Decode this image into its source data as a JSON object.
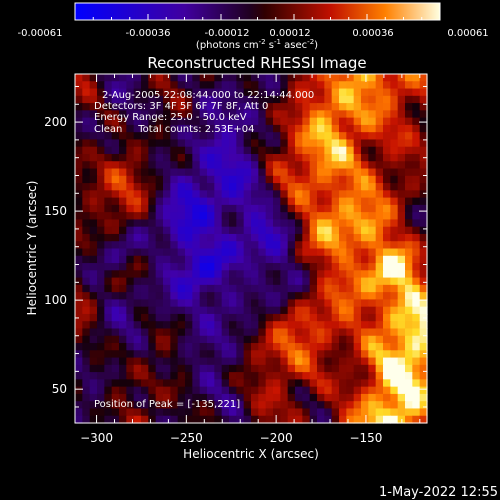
{
  "colorbar": {
    "ticks": [
      "-0.00061",
      "-0.00036",
      "-0.00012",
      "0.00012",
      "0.00036",
      "0.00061"
    ],
    "units_main": "(photons cm",
    "units_sup1": "-2",
    "units_mid": " s",
    "units_sup2": "-1",
    "units_mid2": " asec",
    "units_sup3": "-2",
    "units_end": ")"
  },
  "chart_data": {
    "type": "heatmap",
    "title": "Reconstructed RHESSI Image",
    "xlabel": "Heliocentric X (arcsec)",
    "ylabel": "Heliocentric Y (arcsec)",
    "xlim": [
      -312,
      -116
    ],
    "ylim": [
      31,
      227
    ],
    "xticks": [
      -300,
      -250,
      -200,
      -150
    ],
    "yticks": [
      50,
      100,
      150,
      200
    ],
    "color_range": [
      -0.00061,
      0.00061
    ],
    "annotations": [
      "2-Aug-2005 22:08:44.000 to 22:14:44.000",
      "Detectors: 3F 4F 5F 6F 7F 8F, Att 0",
      "Energy Range: 25.0 - 50.0 keV",
      "Clean     Total counts: 2.53E+04"
    ],
    "peak_label": "Position of Peak = [-135,221]",
    "peak": [
      -135,
      221
    ]
  },
  "timestamp": "1-May-2022 12:55"
}
